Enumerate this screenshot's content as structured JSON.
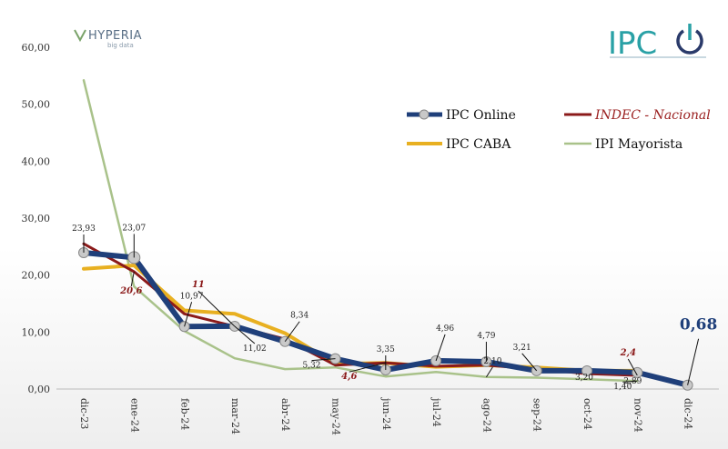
{
  "brand": {
    "left": "HYPERIA",
    "left_sub": "big data",
    "right": "IPC"
  },
  "chart_data": {
    "type": "line",
    "categories": [
      "dic-23",
      "ene-24",
      "feb-24",
      "mar-24",
      "abr-24",
      "may-24",
      "jun-24",
      "jul-24",
      "ago-24",
      "sep-24",
      "oct-24",
      "nov-24",
      "dic-24"
    ],
    "ylim": [
      0,
      60
    ],
    "yticks": [
      "0,00",
      "10,00",
      "20,00",
      "30,00",
      "40,00",
      "50,00",
      "60,00"
    ],
    "legend_position": "top-right",
    "series": [
      {
        "name": "IPC Online",
        "color": "#1f3f7a",
        "values": [
          23.93,
          23.07,
          10.97,
          11.02,
          8.34,
          5.32,
          3.35,
          4.96,
          4.79,
          3.21,
          3.2,
          2.89,
          0.68
        ]
      },
      {
        "name": "INDEC - Nacional",
        "color": "#8b1a1a",
        "values": [
          25.5,
          20.6,
          13.2,
          11.0,
          8.8,
          4.2,
          4.6,
          4.0,
          4.2,
          3.5,
          2.7,
          2.4,
          null
        ]
      },
      {
        "name": "IPC CABA",
        "color": "#e8b021",
        "values": [
          21.1,
          21.7,
          13.8,
          13.2,
          9.8,
          4.4,
          4.6,
          3.9,
          4.2,
          3.8,
          3.2,
          3.2,
          null
        ]
      },
      {
        "name": "IPI Mayorista",
        "color": "#a9c28a",
        "values": [
          54.2,
          18.0,
          10.2,
          5.4,
          3.5,
          3.8,
          2.2,
          3.0,
          2.1,
          2.0,
          1.7,
          1.4,
          null
        ]
      }
    ],
    "annotations": [
      {
        "text": "23,93",
        "series": "IPC Online",
        "index": 0
      },
      {
        "text": "23,07",
        "series": "IPC Online",
        "index": 1
      },
      {
        "text": "20,6",
        "series": "INDEC - Nacional",
        "index": 1
      },
      {
        "text": "10,97",
        "series": "IPC Online",
        "index": 2
      },
      {
        "text": "11",
        "series": "INDEC - Nacional",
        "index": 3
      },
      {
        "text": "11,02",
        "series": "IPC Online",
        "index": 3
      },
      {
        "text": "8,34",
        "series": "IPC Online",
        "index": 4
      },
      {
        "text": "5,32",
        "series": "IPC Online",
        "index": 5
      },
      {
        "text": "3,35",
        "series": "IPC Online",
        "index": 6
      },
      {
        "text": "4,6",
        "series": "INDEC - Nacional",
        "index": 6
      },
      {
        "text": "4,96",
        "series": "IPC Online",
        "index": 7
      },
      {
        "text": "2,10",
        "series": "IPI Mayorista",
        "index": 8
      },
      {
        "text": "4,79",
        "series": "IPC Online",
        "index": 8
      },
      {
        "text": "3,21",
        "series": "IPC Online",
        "index": 9
      },
      {
        "text": "3,20",
        "series": "IPC Online",
        "index": 10
      },
      {
        "text": "1,40",
        "series": "IPI Mayorista",
        "index": 11
      },
      {
        "text": "2,4",
        "series": "INDEC - Nacional",
        "index": 11
      },
      {
        "text": "2,89",
        "series": "IPC Online",
        "index": 11
      },
      {
        "text": "0,68",
        "series": "IPC Online",
        "index": 12
      }
    ]
  }
}
